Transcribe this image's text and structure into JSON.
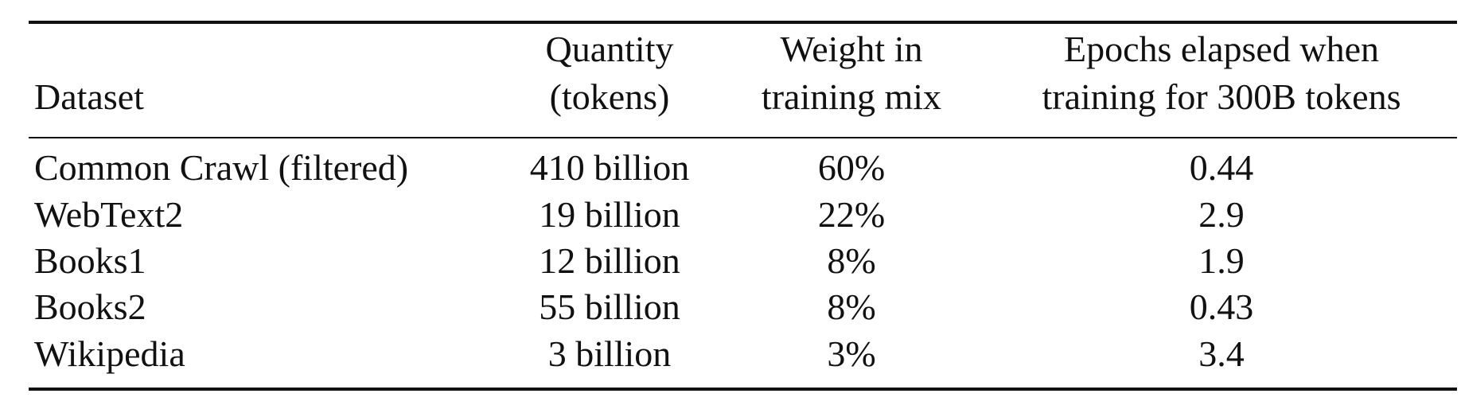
{
  "table": {
    "headers": {
      "dataset": "Dataset",
      "quantity": [
        "Quantity",
        "(tokens)"
      ],
      "weight": [
        "Weight in",
        "training mix"
      ],
      "epochs": [
        "Epochs elapsed when",
        "training for 300B tokens"
      ]
    },
    "rows": [
      {
        "dataset": "Common Crawl (filtered)",
        "quantity": "410 billion",
        "weight": "60%",
        "epochs": "0.44"
      },
      {
        "dataset": "WebText2",
        "quantity": "19 billion",
        "weight": "22%",
        "epochs": "2.9"
      },
      {
        "dataset": "Books1",
        "quantity": "12 billion",
        "weight": "8%",
        "epochs": "1.9"
      },
      {
        "dataset": "Books2",
        "quantity": "55 billion",
        "weight": "8%",
        "epochs": "0.43"
      },
      {
        "dataset": "Wikipedia",
        "quantity": "3 billion",
        "weight": "3%",
        "epochs": "3.4"
      }
    ]
  }
}
